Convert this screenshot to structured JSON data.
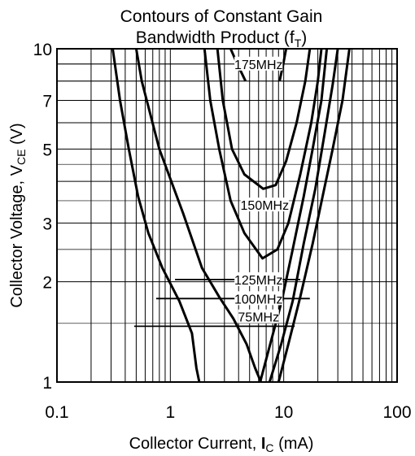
{
  "chart_data": {
    "type": "line",
    "title": "Contours of Constant Gain",
    "subtitle": {
      "text": "Bandwidth Product (f",
      "sub": "T",
      "end": ")"
    },
    "xlabel": {
      "text": "Collector Current, ",
      "bold": "I",
      "sub": "C",
      "end": " (mA)"
    },
    "ylabel": {
      "text": "Collector Voltage, V",
      "sub": "CE",
      "end": " (V)"
    },
    "x_scale": "log",
    "y_scale": "log",
    "xlim": [
      0.1,
      100
    ],
    "ylim": [
      1,
      10
    ],
    "x_ticks": [
      {
        "value": 0.1,
        "label": "0.1"
      },
      {
        "value": 1,
        "label": "1"
      },
      {
        "value": 10,
        "label": "10"
      },
      {
        "value": 100,
        "label": "100"
      }
    ],
    "y_ticks": [
      {
        "value": 1,
        "label": "1"
      },
      {
        "value": 2,
        "label": "2"
      },
      {
        "value": 3,
        "label": "3"
      },
      {
        "value": 5,
        "label": "5"
      },
      {
        "value": 7,
        "label": "7"
      },
      {
        "value": 10,
        "label": "10"
      }
    ],
    "grid": true,
    "series": [
      {
        "name": "175MHz",
        "label_at": [
          6,
          9.0
        ],
        "points": [
          [
            3.4,
            10
          ],
          [
            3.9,
            9.0
          ],
          [
            4.6,
            8.0
          ]
        ],
        "right_points": [
          [
            9.2,
            8.0
          ],
          [
            9.9,
            9.0
          ],
          [
            10.5,
            10
          ]
        ]
      },
      {
        "name": "150MHz",
        "label_at": [
          6.8,
          3.4
        ],
        "points": [
          [
            0.31,
            10
          ],
          [
            0.36,
            7
          ],
          [
            0.43,
            5
          ],
          [
            0.52,
            3.6
          ],
          [
            0.64,
            2.8
          ],
          [
            0.85,
            2.2
          ],
          [
            1.2,
            1.75
          ],
          [
            1.55,
            1.4
          ],
          [
            1.7,
            1.1
          ],
          [
            1.8,
            1
          ]
        ],
        "right_points": [
          [
            0.5,
            10
          ],
          [
            0.56,
            8
          ],
          [
            0.8,
            5
          ],
          [
            1.3,
            3.2
          ],
          [
            1.9,
            2.2
          ],
          [
            2.7,
            1.8
          ],
          [
            3.6,
            1.55
          ],
          [
            4.7,
            1.3
          ],
          [
            5.6,
            1.1
          ],
          [
            6.3,
            1
          ]
        ]
      },
      {
        "name": "150MHz-inner",
        "label_at": null,
        "points": [
          [
            2.6,
            10
          ],
          [
            2.9,
            7
          ],
          [
            3.5,
            5
          ],
          [
            4.5,
            4.2
          ],
          [
            6.6,
            3.8
          ],
          [
            8.5,
            3.9
          ],
          [
            10.5,
            4.6
          ],
          [
            13,
            6
          ],
          [
            15.5,
            8
          ],
          [
            17,
            10
          ]
        ]
      },
      {
        "name": "125MHz",
        "label_at": null,
        "points": [
          [
            2.0,
            10
          ],
          [
            2.25,
            7
          ],
          [
            2.7,
            5
          ],
          [
            3.4,
            3.5
          ],
          [
            4.5,
            2.8
          ],
          [
            6.5,
            2.35
          ],
          [
            8.8,
            2.5
          ],
          [
            11,
            3.0
          ],
          [
            14,
            4.2
          ],
          [
            17.5,
            6
          ],
          [
            20,
            8
          ],
          [
            21.5,
            10
          ]
        ]
      },
      {
        "name": "100MHz",
        "label_at": null,
        "points": [
          [
            7.5,
            1
          ],
          [
            9.5,
            1.3
          ],
          [
            12,
            1.75
          ],
          [
            15,
            2.6
          ],
          [
            19,
            3.8
          ],
          [
            23,
            5.6
          ],
          [
            27,
            7.8
          ],
          [
            30,
            10
          ]
        ]
      },
      {
        "name": "75MHz",
        "label_at": null,
        "points": [
          [
            6.2,
            1
          ],
          [
            7.6,
            1.3
          ],
          [
            9.6,
            1.75
          ],
          [
            12,
            2.5
          ],
          [
            15,
            3.6
          ],
          [
            18,
            5.0
          ],
          [
            21.5,
            7.0
          ],
          [
            24,
            10
          ]
        ]
      },
      {
        "name": "75MHz-right",
        "label_at": null,
        "points": [
          [
            9.0,
            1
          ],
          [
            11,
            1.3
          ],
          [
            14,
            1.8
          ],
          [
            18,
            2.6
          ],
          [
            22,
            3.6
          ],
          [
            27,
            5.0
          ],
          [
            33,
            7.0
          ],
          [
            38,
            10
          ]
        ]
      }
    ],
    "annotations": [
      {
        "text": "175MHz",
        "x": 6.0,
        "y": 9.0
      },
      {
        "text": "150MHz",
        "x": 6.8,
        "y": 3.4
      },
      {
        "text": "125MHz",
        "x": 6.0,
        "y": 2.03
      },
      {
        "text": "100MHz",
        "x": 6.0,
        "y": 1.78
      },
      {
        "text": "75MHz",
        "x": 6.0,
        "y": 1.57
      }
    ],
    "reference_lines": [
      {
        "y": 2.03,
        "x_from": 1.1,
        "x_to": 14
      },
      {
        "y": 1.78,
        "x_from": 0.75,
        "x_to": 17
      },
      {
        "y": 1.47,
        "x_from": 0.48,
        "x_to": 12.5
      }
    ]
  }
}
